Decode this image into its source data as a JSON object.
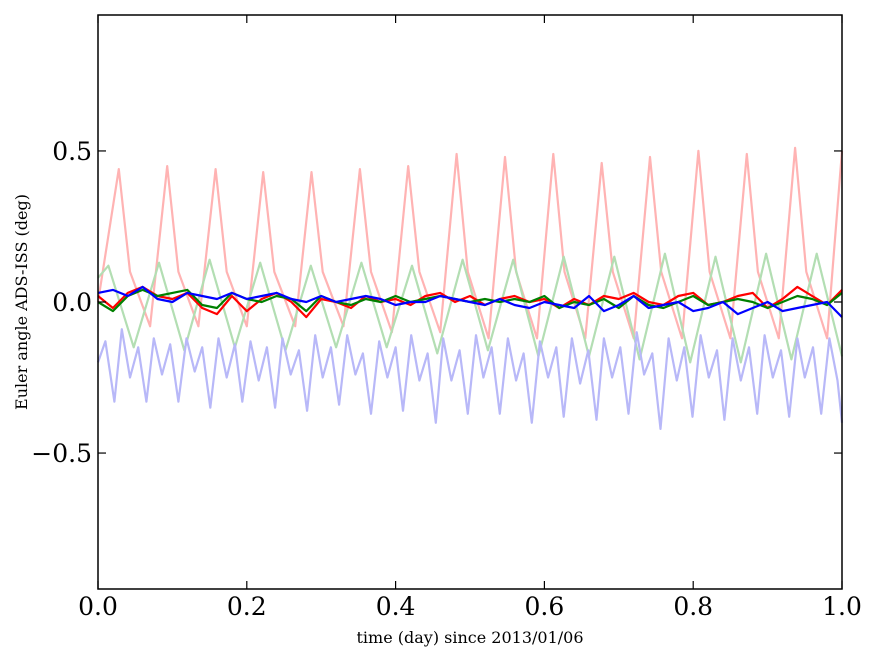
{
  "chart_data": {
    "type": "line",
    "title": "",
    "xlabel": "time (day) since 2013/01/06",
    "ylabel": "Euler angle ADS-ISS (deg)",
    "xlim": [
      0.0,
      1.0
    ],
    "ylim": [
      -0.95,
      0.95
    ],
    "grid": false,
    "legend": "none",
    "x_ticks": [
      "0.0",
      "0.2",
      "0.4",
      "0.6",
      "0.8",
      "1.0"
    ],
    "x_tick_values": [
      0.0,
      0.2,
      0.4,
      0.6,
      0.8,
      1.0
    ],
    "y_ticks": [
      "0.5",
      "0.0",
      "−0.5"
    ],
    "y_tick_values": [
      0.5,
      0.0,
      -0.5
    ],
    "series": [
      {
        "color": "#ffb3b3",
        "style": "faint",
        "x": [
          0.0,
          0.028,
          0.043,
          0.07,
          0.093,
          0.108,
          0.135,
          0.158,
          0.173,
          0.2,
          0.222,
          0.237,
          0.265,
          0.287,
          0.302,
          0.33,
          0.352,
          0.367,
          0.395,
          0.417,
          0.432,
          0.46,
          0.482,
          0.497,
          0.525,
          0.547,
          0.562,
          0.59,
          0.612,
          0.627,
          0.655,
          0.677,
          0.692,
          0.72,
          0.742,
          0.757,
          0.785,
          0.807,
          0.822,
          0.85,
          0.872,
          0.887,
          0.915,
          0.937,
          0.952,
          0.98,
          1.0
        ],
        "y": [
          0.0,
          0.44,
          0.1,
          -0.08,
          0.45,
          0.1,
          -0.08,
          0.44,
          0.1,
          -0.08,
          0.43,
          0.1,
          -0.08,
          0.43,
          0.1,
          -0.08,
          0.44,
          0.1,
          -0.1,
          0.45,
          0.1,
          -0.1,
          0.49,
          0.1,
          -0.12,
          0.48,
          0.1,
          -0.12,
          0.49,
          0.1,
          -0.12,
          0.46,
          0.1,
          -0.12,
          0.48,
          0.1,
          -0.12,
          0.5,
          0.1,
          -0.12,
          0.49,
          0.1,
          -0.12,
          0.51,
          0.1,
          -0.12,
          0.5
        ]
      },
      {
        "color": "#b3deb3",
        "style": "faint",
        "x": [
          0.0,
          0.014,
          0.048,
          0.082,
          0.116,
          0.15,
          0.184,
          0.218,
          0.252,
          0.286,
          0.32,
          0.354,
          0.388,
          0.422,
          0.456,
          0.49,
          0.524,
          0.558,
          0.592,
          0.626,
          0.66,
          0.694,
          0.728,
          0.762,
          0.796,
          0.83,
          0.864,
          0.898,
          0.932,
          0.966,
          1.0
        ],
        "y": [
          0.08,
          0.12,
          -0.15,
          0.13,
          -0.16,
          0.14,
          -0.15,
          0.13,
          -0.16,
          0.12,
          -0.15,
          0.13,
          -0.15,
          0.12,
          -0.17,
          0.14,
          -0.16,
          0.14,
          -0.18,
          0.15,
          -0.18,
          0.15,
          -0.19,
          0.16,
          -0.2,
          0.15,
          -0.2,
          0.16,
          -0.19,
          0.16,
          -0.18
        ]
      },
      {
        "color": "#b8b8f8",
        "style": "faint",
        "x": [
          0.0,
          0.01,
          0.022,
          0.032,
          0.043,
          0.054,
          0.065,
          0.075,
          0.086,
          0.097,
          0.108,
          0.119,
          0.13,
          0.14,
          0.151,
          0.162,
          0.173,
          0.184,
          0.194,
          0.205,
          0.216,
          0.227,
          0.238,
          0.248,
          0.259,
          0.27,
          0.281,
          0.292,
          0.302,
          0.313,
          0.324,
          0.335,
          0.346,
          0.356,
          0.367,
          0.378,
          0.389,
          0.4,
          0.41,
          0.421,
          0.432,
          0.443,
          0.454,
          0.464,
          0.475,
          0.486,
          0.497,
          0.508,
          0.518,
          0.529,
          0.54,
          0.551,
          0.562,
          0.572,
          0.583,
          0.594,
          0.605,
          0.616,
          0.626,
          0.637,
          0.648,
          0.659,
          0.67,
          0.68,
          0.691,
          0.702,
          0.713,
          0.724,
          0.734,
          0.745,
          0.756,
          0.767,
          0.778,
          0.788,
          0.799,
          0.81,
          0.821,
          0.832,
          0.842,
          0.853,
          0.864,
          0.875,
          0.886,
          0.896,
          0.907,
          0.918,
          0.929,
          0.94,
          0.95,
          0.961,
          0.972,
          0.983,
          0.994,
          1.0
        ],
        "y": [
          -0.2,
          -0.13,
          -0.33,
          -0.09,
          -0.25,
          -0.15,
          -0.33,
          -0.12,
          -0.24,
          -0.14,
          -0.33,
          -0.12,
          -0.23,
          -0.15,
          -0.35,
          -0.12,
          -0.25,
          -0.14,
          -0.33,
          -0.13,
          -0.26,
          -0.15,
          -0.35,
          -0.12,
          -0.24,
          -0.16,
          -0.36,
          -0.11,
          -0.25,
          -0.15,
          -0.34,
          -0.11,
          -0.24,
          -0.17,
          -0.37,
          -0.13,
          -0.25,
          -0.15,
          -0.36,
          -0.11,
          -0.26,
          -0.17,
          -0.4,
          -0.12,
          -0.26,
          -0.16,
          -0.37,
          -0.11,
          -0.25,
          -0.15,
          -0.37,
          -0.12,
          -0.26,
          -0.17,
          -0.4,
          -0.13,
          -0.25,
          -0.15,
          -0.38,
          -0.12,
          -0.27,
          -0.16,
          -0.39,
          -0.12,
          -0.25,
          -0.15,
          -0.37,
          -0.1,
          -0.24,
          -0.17,
          -0.42,
          -0.12,
          -0.26,
          -0.15,
          -0.38,
          -0.11,
          -0.25,
          -0.16,
          -0.39,
          -0.12,
          -0.26,
          -0.15,
          -0.37,
          -0.11,
          -0.25,
          -0.16,
          -0.38,
          -0.12,
          -0.25,
          -0.15,
          -0.37,
          -0.12,
          -0.26,
          -0.4
        ]
      },
      {
        "color": "#ff0000",
        "style": "solid",
        "x": [
          0.0,
          0.02,
          0.04,
          0.06,
          0.08,
          0.1,
          0.12,
          0.14,
          0.16,
          0.18,
          0.2,
          0.22,
          0.24,
          0.26,
          0.28,
          0.3,
          0.32,
          0.34,
          0.36,
          0.38,
          0.4,
          0.42,
          0.44,
          0.46,
          0.48,
          0.5,
          0.52,
          0.54,
          0.56,
          0.58,
          0.6,
          0.62,
          0.64,
          0.66,
          0.68,
          0.7,
          0.72,
          0.74,
          0.76,
          0.78,
          0.8,
          0.82,
          0.84,
          0.86,
          0.88,
          0.9,
          0.92,
          0.94,
          0.96,
          0.98,
          1.0
        ],
        "y": [
          0.02,
          -0.02,
          0.03,
          0.05,
          0.02,
          0.01,
          0.03,
          -0.02,
          -0.04,
          0.02,
          -0.03,
          0.01,
          0.03,
          0.0,
          -0.05,
          0.01,
          0.0,
          -0.02,
          0.02,
          0.0,
          0.01,
          -0.01,
          0.02,
          0.03,
          0.0,
          0.02,
          -0.01,
          0.01,
          0.02,
          0.0,
          0.01,
          -0.02,
          0.01,
          -0.01,
          0.02,
          0.01,
          0.03,
          0.0,
          -0.01,
          0.02,
          0.03,
          -0.01,
          0.0,
          0.02,
          0.03,
          -0.02,
          0.01,
          0.05,
          0.02,
          -0.01,
          0.04
        ]
      },
      {
        "color": "#008000",
        "style": "solid",
        "x": [
          0.0,
          0.02,
          0.04,
          0.06,
          0.08,
          0.1,
          0.12,
          0.14,
          0.16,
          0.18,
          0.2,
          0.22,
          0.24,
          0.26,
          0.28,
          0.3,
          0.32,
          0.34,
          0.36,
          0.38,
          0.4,
          0.42,
          0.44,
          0.46,
          0.48,
          0.5,
          0.52,
          0.54,
          0.56,
          0.58,
          0.6,
          0.62,
          0.64,
          0.66,
          0.68,
          0.7,
          0.72,
          0.74,
          0.76,
          0.78,
          0.8,
          0.82,
          0.84,
          0.86,
          0.88,
          0.9,
          0.92,
          0.94,
          0.96,
          0.98,
          1.0
        ],
        "y": [
          0.0,
          -0.03,
          0.02,
          0.04,
          0.02,
          0.03,
          0.04,
          -0.01,
          -0.02,
          0.03,
          0.01,
          0.0,
          0.02,
          0.01,
          -0.03,
          0.02,
          0.0,
          -0.01,
          0.01,
          0.0,
          0.02,
          0.0,
          0.01,
          0.02,
          0.01,
          0.0,
          0.01,
          0.0,
          0.01,
          0.0,
          0.02,
          -0.02,
          0.0,
          -0.01,
          0.01,
          -0.02,
          0.02,
          -0.01,
          -0.02,
          0.0,
          0.02,
          -0.01,
          0.0,
          0.01,
          0.0,
          -0.02,
          0.0,
          0.02,
          0.01,
          -0.01,
          0.03
        ]
      },
      {
        "color": "#0000ff",
        "style": "solid",
        "x": [
          0.0,
          0.02,
          0.04,
          0.06,
          0.08,
          0.1,
          0.12,
          0.14,
          0.16,
          0.18,
          0.2,
          0.22,
          0.24,
          0.26,
          0.28,
          0.3,
          0.32,
          0.34,
          0.36,
          0.38,
          0.4,
          0.42,
          0.44,
          0.46,
          0.48,
          0.5,
          0.52,
          0.54,
          0.56,
          0.58,
          0.6,
          0.62,
          0.64,
          0.66,
          0.68,
          0.7,
          0.72,
          0.74,
          0.76,
          0.78,
          0.8,
          0.82,
          0.84,
          0.86,
          0.88,
          0.9,
          0.92,
          0.94,
          0.96,
          0.98,
          1.0
        ],
        "y": [
          0.03,
          0.04,
          0.02,
          0.05,
          0.01,
          0.0,
          0.03,
          0.02,
          0.01,
          0.03,
          0.01,
          0.02,
          0.03,
          0.01,
          0.0,
          0.02,
          0.0,
          0.01,
          0.02,
          0.01,
          -0.01,
          0.0,
          0.0,
          0.02,
          0.01,
          0.0,
          -0.01,
          0.01,
          -0.01,
          -0.02,
          0.0,
          -0.01,
          -0.02,
          0.02,
          -0.03,
          -0.01,
          0.02,
          -0.02,
          -0.01,
          0.0,
          -0.03,
          -0.02,
          0.0,
          -0.04,
          -0.02,
          0.0,
          -0.03,
          -0.02,
          -0.01,
          0.0,
          -0.05
        ]
      }
    ]
  }
}
